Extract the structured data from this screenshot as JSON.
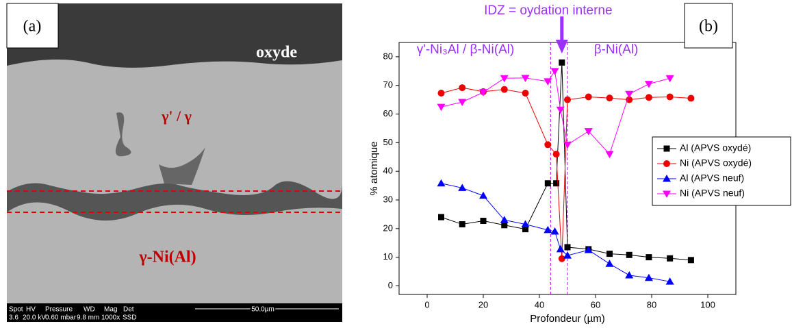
{
  "image_panel": {
    "label": "(a)",
    "phases": [
      "oxyde",
      "γ' / γ",
      "γ-Ni(Al)"
    ],
    "info_headers": [
      "Spot",
      "HV",
      "Pressure",
      "WD",
      "Mag",
      "Det"
    ],
    "info_values": [
      "3.6",
      "20.0 kV",
      "0.60  mbar",
      "9.8 mm",
      "1000x",
      "SSD"
    ],
    "scale_bar": "50.0µm"
  },
  "chart_data": {
    "type": "line",
    "panel_label": "(b)",
    "annotations": [
      "IDZ = oydation interne",
      "γ'-Ni₃Al / β-Ni(Al)",
      "β-Ni(Al)"
    ],
    "vlines": [
      44,
      50
    ],
    "arrow_x": 48,
    "x_label": "Profondeur (µm)",
    "y_label": "% atomique",
    "xlim": [
      -10,
      110
    ],
    "xticks": [
      0,
      20,
      40,
      60,
      80,
      100
    ],
    "ylim": [
      -3,
      85
    ],
    "yticks": [
      0,
      10,
      20,
      30,
      40,
      50,
      60,
      70,
      80
    ],
    "series": [
      {
        "name": "Al (APVS oxydé)",
        "color": "#000000",
        "marker": "square",
        "x": [
          5,
          12.5,
          20,
          27.5,
          35,
          43,
          46,
          48,
          50,
          57.5,
          65,
          72,
          79,
          86.5,
          94
        ],
        "values": [
          24,
          21.5,
          22.7,
          21.2,
          19.8,
          35.8,
          35.8,
          78,
          13.5,
          12.8,
          11.2,
          10.8,
          10,
          9.6,
          9
        ]
      },
      {
        "name": "Ni (APVS oxydé)",
        "color": "#ee0000",
        "marker": "circle",
        "x": [
          5,
          12.5,
          20,
          27.5,
          35,
          43,
          46,
          48,
          50,
          57.5,
          65,
          72,
          79,
          86.5,
          94
        ],
        "values": [
          67.3,
          69.2,
          67.8,
          68.6,
          67.3,
          49.3,
          46,
          9.5,
          65,
          66,
          65.6,
          65,
          65.8,
          66,
          65.5
        ]
      },
      {
        "name": "Al (APVS neuf)",
        "color": "#0000ff",
        "marker": "up",
        "x": [
          5,
          12.5,
          20,
          27.5,
          35,
          43,
          45.5,
          47.5,
          50,
          57.5,
          65,
          72,
          79,
          86.5
        ],
        "values": [
          35.8,
          34.2,
          31.5,
          23,
          21.5,
          19.5,
          19,
          12.8,
          10.6,
          12.5,
          7.7,
          3.7,
          2.8,
          1.5
        ]
      },
      {
        "name": "Ni (APVS neuf)",
        "color": "#ff00ff",
        "marker": "down",
        "x": [
          5,
          12.5,
          20,
          27.5,
          35,
          43,
          45.5,
          47.5,
          50,
          57.5,
          65,
          72,
          79,
          86.5
        ],
        "values": [
          62.5,
          64.2,
          67.6,
          72.5,
          72.6,
          71.4,
          75,
          61.5,
          49.3,
          54,
          46,
          67,
          70.5,
          72.5
        ]
      }
    ]
  }
}
